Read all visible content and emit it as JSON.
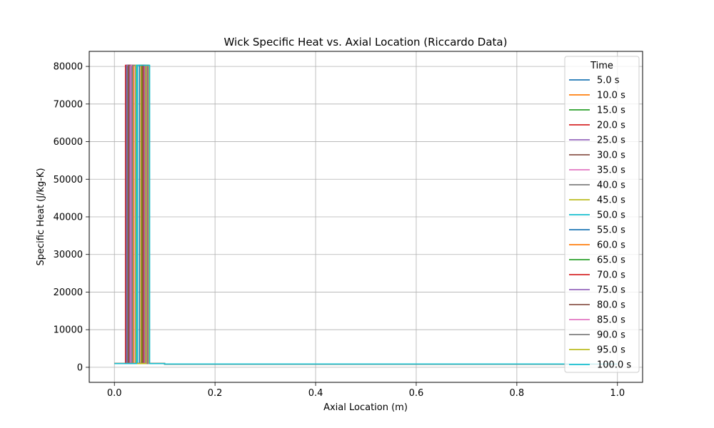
{
  "chart_data": {
    "type": "line",
    "title": "Wick Specific Heat vs. Axial Location (Riccardo Data)",
    "xlabel": "Axial Location (m)",
    "ylabel": "Specific Heat (J/kg-K)",
    "xlim": [
      -0.05,
      1.05
    ],
    "ylim": [
      -4000,
      84000
    ],
    "xticks": [
      0.0,
      0.2,
      0.4,
      0.6,
      0.8,
      1.0
    ],
    "xtick_labels": [
      "0.0",
      "0.2",
      "0.4",
      "0.6",
      "0.8",
      "1.0"
    ],
    "yticks": [
      0,
      10000,
      20000,
      30000,
      40000,
      50000,
      60000,
      70000,
      80000
    ],
    "ytick_labels": [
      "0",
      "10000",
      "20000",
      "30000",
      "40000",
      "50000",
      "60000",
      "70000",
      "80000"
    ],
    "grid": true,
    "legend": {
      "title": "Time",
      "placement": "top-right"
    },
    "baseline_start": 1000,
    "baseline_end": 880,
    "peak_value": 80300,
    "series": [
      {
        "name": "5.0 s",
        "color": "#1f77b4",
        "peak_x": [
          0.024,
          0.034
        ]
      },
      {
        "name": "10.0 s",
        "color": "#ff7f0e",
        "peak_x": [
          0.03,
          0.038
        ]
      },
      {
        "name": "15.0 s",
        "color": "#2ca02c",
        "peak_x": [
          0.027,
          0.033
        ]
      },
      {
        "name": "20.0 s",
        "color": "#d62728",
        "peak_x": [
          0.022,
          0.029
        ]
      },
      {
        "name": "25.0 s",
        "color": "#9467bd",
        "peak_x": [
          0.025,
          0.031
        ]
      },
      {
        "name": "30.0 s",
        "color": "#8c564b",
        "peak_x": [
          0.028,
          0.036
        ]
      },
      {
        "name": "35.0 s",
        "color": "#e377c2",
        "peak_x": [
          0.033,
          0.041
        ]
      },
      {
        "name": "40.0 s",
        "color": "#7f7f7f",
        "peak_x": [
          0.036,
          0.044
        ]
      },
      {
        "name": "45.0 s",
        "color": "#bcbd22",
        "peak_x": [
          0.042,
          0.05
        ]
      },
      {
        "name": "50.0 s",
        "color": "#17becf",
        "peak_x": [
          0.046,
          0.054
        ]
      },
      {
        "name": "55.0 s",
        "color": "#1f77b4",
        "peak_x": [
          0.05,
          0.058
        ]
      },
      {
        "name": "60.0 s",
        "color": "#ff7f0e",
        "peak_x": [
          0.053,
          0.06
        ]
      },
      {
        "name": "65.0 s",
        "color": "#2ca02c",
        "peak_x": [
          0.055,
          0.062
        ]
      },
      {
        "name": "70.0 s",
        "color": "#d62728",
        "peak_x": [
          0.057,
          0.063
        ]
      },
      {
        "name": "75.0 s",
        "color": "#9467bd",
        "peak_x": [
          0.059,
          0.064
        ]
      },
      {
        "name": "80.0 s",
        "color": "#8c564b",
        "peak_x": [
          0.06,
          0.066
        ]
      },
      {
        "name": "85.0 s",
        "color": "#e377c2",
        "peak_x": [
          0.061,
          0.067
        ]
      },
      {
        "name": "90.0 s",
        "color": "#7f7f7f",
        "peak_x": [
          0.062,
          0.068
        ]
      },
      {
        "name": "95.0 s",
        "color": "#bcbd22",
        "peak_x": [
          0.063,
          0.069
        ]
      },
      {
        "name": "100.0 s",
        "color": "#17becf",
        "peak_x": [
          0.044,
          0.07
        ]
      }
    ]
  }
}
